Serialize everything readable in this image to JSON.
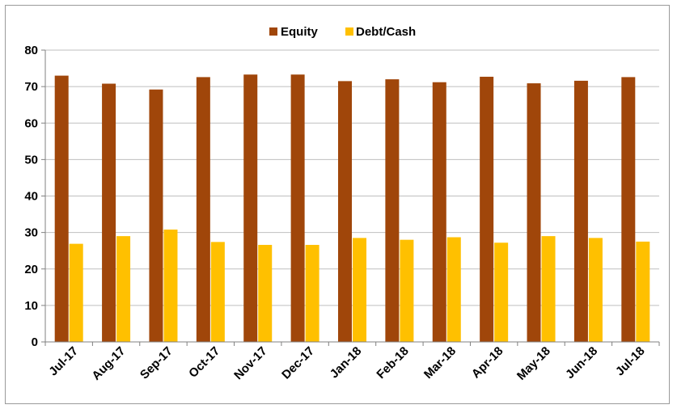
{
  "chart_data": {
    "type": "bar",
    "title": "",
    "xlabel": "",
    "ylabel": "",
    "categories": [
      "Jul-17",
      "Aug-17",
      "Sep-17",
      "Oct-17",
      "Nov-17",
      "Dec-17",
      "Jan-18",
      "Feb-18",
      "Mar-18",
      "Apr-18",
      "May-18",
      "Jun-18",
      "Jul-18"
    ],
    "series": [
      {
        "name": "Equity",
        "color": "#a0460a",
        "values": [
          73,
          70.8,
          69.2,
          72.6,
          73.3,
          73.3,
          71.5,
          72,
          71.2,
          72.7,
          70.9,
          71.6,
          72.6
        ]
      },
      {
        "name": "Debt/Cash",
        "color": "#ffc000",
        "values": [
          26.9,
          29,
          30.8,
          27.4,
          26.6,
          26.6,
          28.5,
          28,
          28.7,
          27.2,
          29,
          28.5,
          27.5
        ]
      }
    ],
    "ylim": [
      0,
      80
    ],
    "yticks": [
      0,
      10,
      20,
      30,
      40,
      50,
      60,
      70,
      80
    ],
    "grid": true,
    "legend_position": "top-center"
  }
}
